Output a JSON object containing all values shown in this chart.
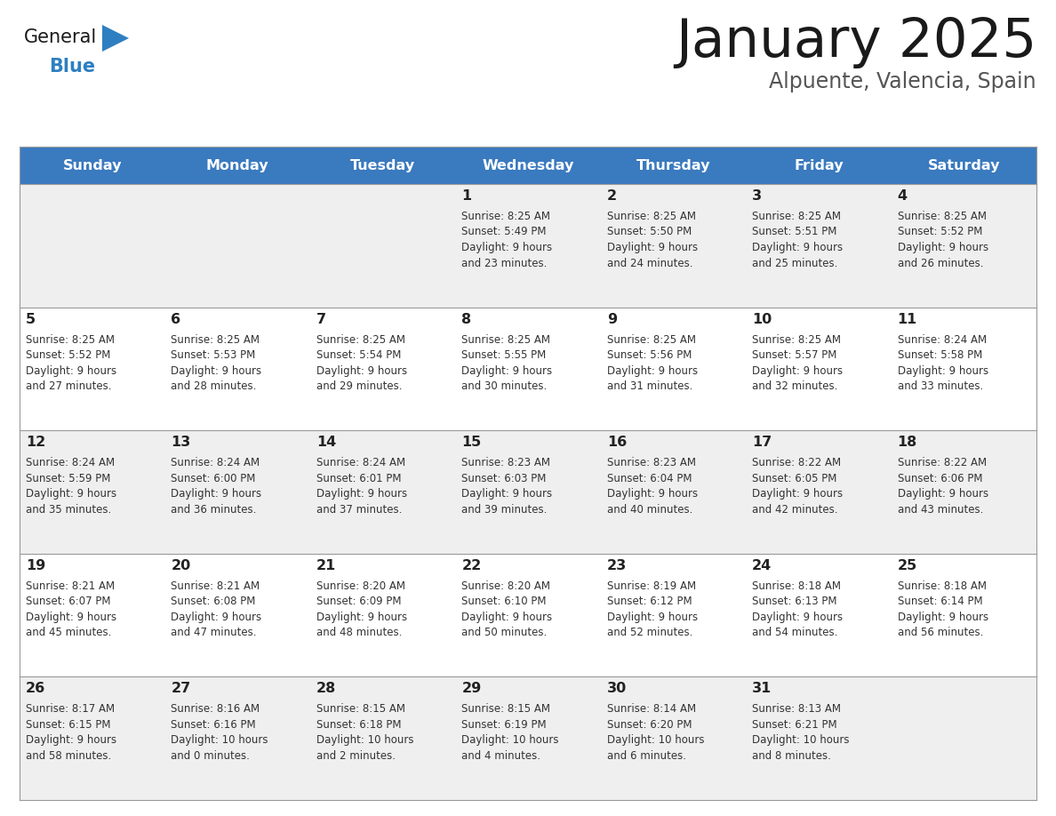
{
  "title": "January 2025",
  "subtitle": "Alpuente, Valencia, Spain",
  "header_bg": "#3a7abf",
  "header_text": "#ffffff",
  "odd_row_bg": "#efefef",
  "even_row_bg": "#ffffff",
  "cell_text": "#333333",
  "days_of_week": [
    "Sunday",
    "Monday",
    "Tuesday",
    "Wednesday",
    "Thursday",
    "Friday",
    "Saturday"
  ],
  "calendar": [
    [
      {
        "day": null,
        "info": null
      },
      {
        "day": null,
        "info": null
      },
      {
        "day": null,
        "info": null
      },
      {
        "day": 1,
        "info": "Sunrise: 8:25 AM\nSunset: 5:49 PM\nDaylight: 9 hours\nand 23 minutes."
      },
      {
        "day": 2,
        "info": "Sunrise: 8:25 AM\nSunset: 5:50 PM\nDaylight: 9 hours\nand 24 minutes."
      },
      {
        "day": 3,
        "info": "Sunrise: 8:25 AM\nSunset: 5:51 PM\nDaylight: 9 hours\nand 25 minutes."
      },
      {
        "day": 4,
        "info": "Sunrise: 8:25 AM\nSunset: 5:52 PM\nDaylight: 9 hours\nand 26 minutes."
      }
    ],
    [
      {
        "day": 5,
        "info": "Sunrise: 8:25 AM\nSunset: 5:52 PM\nDaylight: 9 hours\nand 27 minutes."
      },
      {
        "day": 6,
        "info": "Sunrise: 8:25 AM\nSunset: 5:53 PM\nDaylight: 9 hours\nand 28 minutes."
      },
      {
        "day": 7,
        "info": "Sunrise: 8:25 AM\nSunset: 5:54 PM\nDaylight: 9 hours\nand 29 minutes."
      },
      {
        "day": 8,
        "info": "Sunrise: 8:25 AM\nSunset: 5:55 PM\nDaylight: 9 hours\nand 30 minutes."
      },
      {
        "day": 9,
        "info": "Sunrise: 8:25 AM\nSunset: 5:56 PM\nDaylight: 9 hours\nand 31 minutes."
      },
      {
        "day": 10,
        "info": "Sunrise: 8:25 AM\nSunset: 5:57 PM\nDaylight: 9 hours\nand 32 minutes."
      },
      {
        "day": 11,
        "info": "Sunrise: 8:24 AM\nSunset: 5:58 PM\nDaylight: 9 hours\nand 33 minutes."
      }
    ],
    [
      {
        "day": 12,
        "info": "Sunrise: 8:24 AM\nSunset: 5:59 PM\nDaylight: 9 hours\nand 35 minutes."
      },
      {
        "day": 13,
        "info": "Sunrise: 8:24 AM\nSunset: 6:00 PM\nDaylight: 9 hours\nand 36 minutes."
      },
      {
        "day": 14,
        "info": "Sunrise: 8:24 AM\nSunset: 6:01 PM\nDaylight: 9 hours\nand 37 minutes."
      },
      {
        "day": 15,
        "info": "Sunrise: 8:23 AM\nSunset: 6:03 PM\nDaylight: 9 hours\nand 39 minutes."
      },
      {
        "day": 16,
        "info": "Sunrise: 8:23 AM\nSunset: 6:04 PM\nDaylight: 9 hours\nand 40 minutes."
      },
      {
        "day": 17,
        "info": "Sunrise: 8:22 AM\nSunset: 6:05 PM\nDaylight: 9 hours\nand 42 minutes."
      },
      {
        "day": 18,
        "info": "Sunrise: 8:22 AM\nSunset: 6:06 PM\nDaylight: 9 hours\nand 43 minutes."
      }
    ],
    [
      {
        "day": 19,
        "info": "Sunrise: 8:21 AM\nSunset: 6:07 PM\nDaylight: 9 hours\nand 45 minutes."
      },
      {
        "day": 20,
        "info": "Sunrise: 8:21 AM\nSunset: 6:08 PM\nDaylight: 9 hours\nand 47 minutes."
      },
      {
        "day": 21,
        "info": "Sunrise: 8:20 AM\nSunset: 6:09 PM\nDaylight: 9 hours\nand 48 minutes."
      },
      {
        "day": 22,
        "info": "Sunrise: 8:20 AM\nSunset: 6:10 PM\nDaylight: 9 hours\nand 50 minutes."
      },
      {
        "day": 23,
        "info": "Sunrise: 8:19 AM\nSunset: 6:12 PM\nDaylight: 9 hours\nand 52 minutes."
      },
      {
        "day": 24,
        "info": "Sunrise: 8:18 AM\nSunset: 6:13 PM\nDaylight: 9 hours\nand 54 minutes."
      },
      {
        "day": 25,
        "info": "Sunrise: 8:18 AM\nSunset: 6:14 PM\nDaylight: 9 hours\nand 56 minutes."
      }
    ],
    [
      {
        "day": 26,
        "info": "Sunrise: 8:17 AM\nSunset: 6:15 PM\nDaylight: 9 hours\nand 58 minutes."
      },
      {
        "day": 27,
        "info": "Sunrise: 8:16 AM\nSunset: 6:16 PM\nDaylight: 10 hours\nand 0 minutes."
      },
      {
        "day": 28,
        "info": "Sunrise: 8:15 AM\nSunset: 6:18 PM\nDaylight: 10 hours\nand 2 minutes."
      },
      {
        "day": 29,
        "info": "Sunrise: 8:15 AM\nSunset: 6:19 PM\nDaylight: 10 hours\nand 4 minutes."
      },
      {
        "day": 30,
        "info": "Sunrise: 8:14 AM\nSunset: 6:20 PM\nDaylight: 10 hours\nand 6 minutes."
      },
      {
        "day": 31,
        "info": "Sunrise: 8:13 AM\nSunset: 6:21 PM\nDaylight: 10 hours\nand 8 minutes."
      },
      {
        "day": null,
        "info": null
      }
    ]
  ],
  "logo_general_color": "#1a1a1a",
  "logo_blue_color": "#2e7fc1",
  "logo_triangle_color": "#2e7fc1",
  "title_color": "#1a1a1a",
  "subtitle_color": "#555555",
  "separator_color": "#999999",
  "day_number_color": "#222222"
}
